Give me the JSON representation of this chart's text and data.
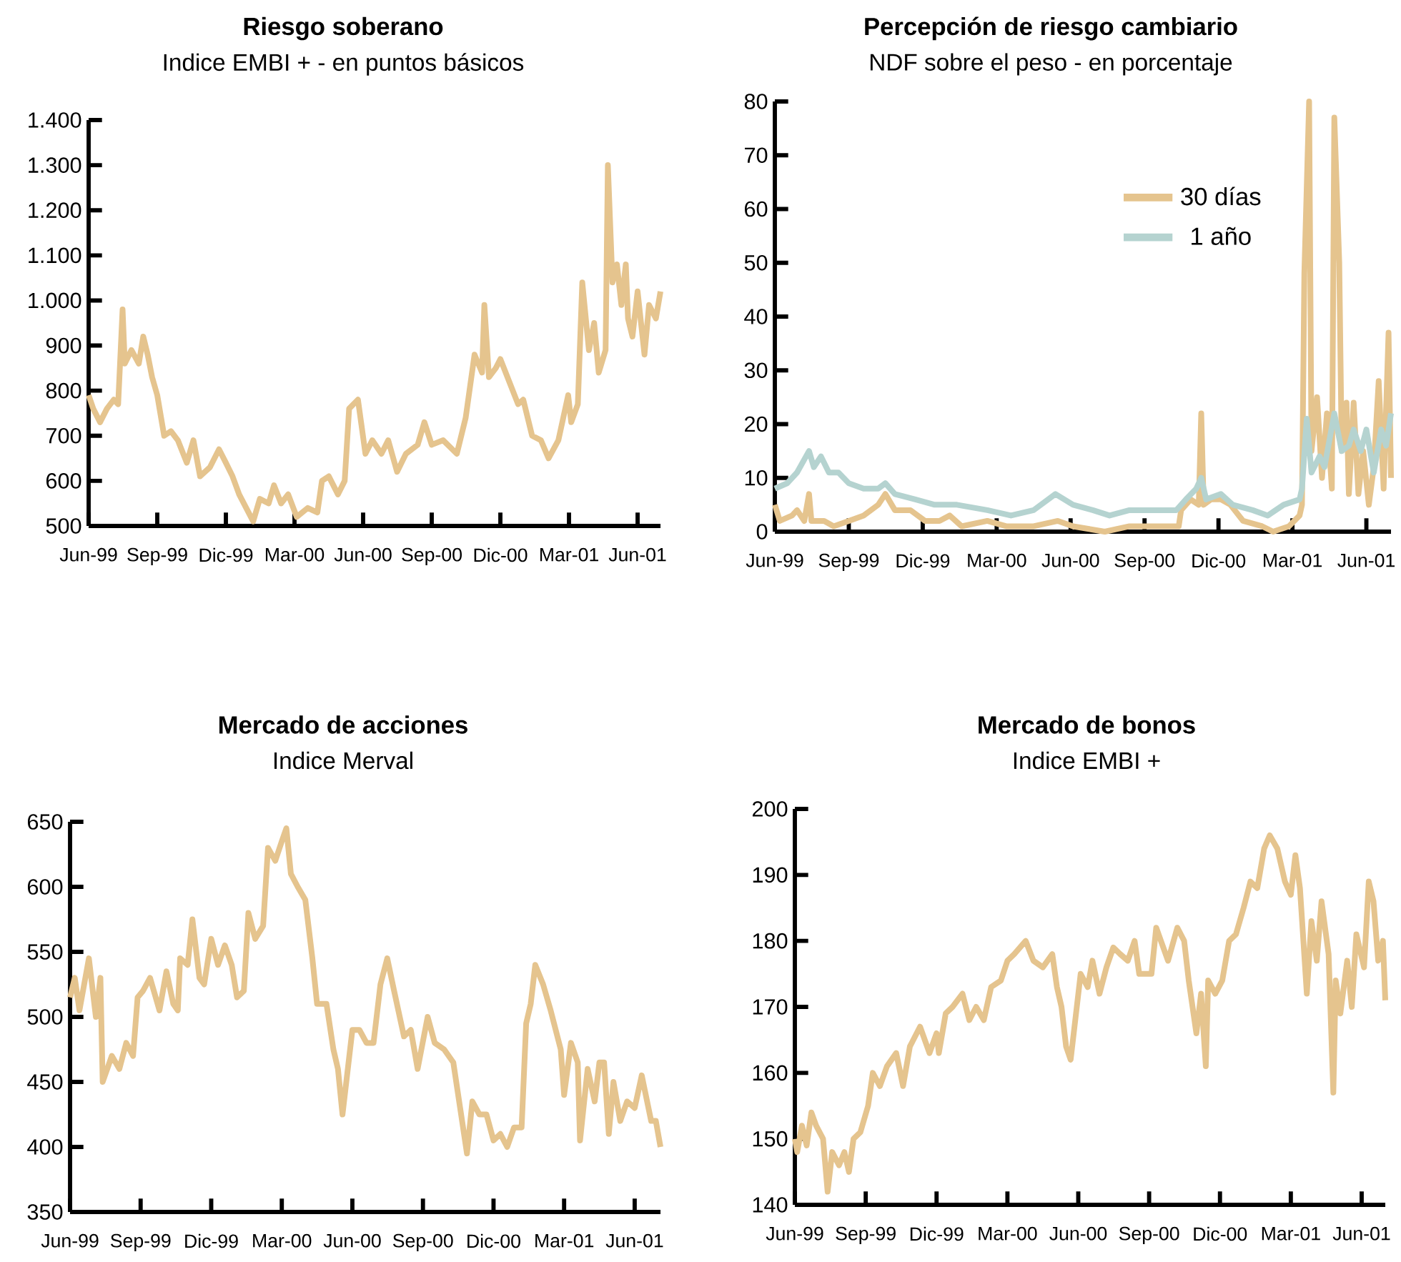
{
  "chart_data": [
    {
      "type": "line",
      "title": "Riesgo soberano",
      "subtitle": "Indice EMBI + - en puntos básicos",
      "xlim": [
        "1999-06-01",
        "2001-07-01"
      ],
      "xticks": [
        {
          "value": "1999-06-01",
          "label": "Jun-99"
        },
        {
          "value": "1999-09-01",
          "label": "Sep-99"
        },
        {
          "value": "1999-12-01",
          "label": "Dic-99"
        },
        {
          "value": "2000-03-01",
          "label": "Mar-00"
        },
        {
          "value": "2000-06-01",
          "label": "Jun-00"
        },
        {
          "value": "2000-09-01",
          "label": "Sep-00"
        },
        {
          "value": "2000-12-01",
          "label": "Dic-00"
        },
        {
          "value": "2001-03-01",
          "label": "Mar-01"
        },
        {
          "value": "2001-06-01",
          "label": "Jun-01"
        }
      ],
      "ylim": [
        500,
        1400
      ],
      "yticks": [
        500,
        600,
        700,
        800,
        900,
        {
          "value": 1000,
          "label": "1.000"
        },
        {
          "value": 1100,
          "label": "1.100"
        },
        {
          "value": 1200,
          "label": "1.200"
        },
        {
          "value": 1300,
          "label": "1.300"
        },
        {
          "value": 1400,
          "label": "1.400"
        }
      ],
      "series": [
        {
          "color": "#e5c48e",
          "x": [
            "1999-06-01",
            "1999-06-07",
            "1999-06-16",
            "1999-06-25",
            "1999-07-04",
            "1999-07-10",
            "1999-07-16",
            "1999-07-19",
            "1999-07-28",
            "1999-08-07",
            "1999-08-13",
            "1999-08-19",
            "1999-08-25",
            "1999-09-01",
            "1999-09-10",
            "1999-09-19",
            "1999-09-28",
            "1999-10-10",
            "1999-10-19",
            "1999-10-28",
            "1999-11-10",
            "1999-11-22",
            "1999-12-01",
            "1999-12-10",
            "1999-12-19",
            "2000-01-07",
            "2000-01-16",
            "2000-01-28",
            "2000-02-04",
            "2000-02-13",
            "2000-02-22",
            "2000-03-04",
            "2000-03-19",
            "2000-04-01",
            "2000-04-07",
            "2000-04-16",
            "2000-04-28",
            "2000-05-07",
            "2000-05-13",
            "2000-05-25",
            "2000-06-04",
            "2000-06-13",
            "2000-06-25",
            "2000-07-04",
            "2000-07-16",
            "2000-07-28",
            "2000-08-13",
            "2000-08-22",
            "2000-09-01",
            "2000-09-16",
            "2000-10-04",
            "2000-10-16",
            "2000-10-28",
            "2000-11-07",
            "2000-11-10",
            "2000-11-16",
            "2000-11-25",
            "2000-12-01",
            "2000-12-13",
            "2000-12-25",
            "2001-01-01",
            "2001-01-13",
            "2001-01-25",
            "2001-02-04",
            "2001-02-16",
            "2001-02-28",
            "2001-03-04",
            "2001-03-13",
            "2001-03-19",
            "2001-03-28",
            "2001-04-04",
            "2001-04-10",
            "2001-04-19",
            "2001-04-22",
            "2001-04-28",
            "2001-05-04",
            "2001-05-10",
            "2001-05-16",
            "2001-05-19",
            "2001-05-25",
            "2001-06-01",
            "2001-06-10",
            "2001-06-16",
            "2001-06-25",
            "2001-07-01"
          ],
          "values": [
            790,
            760,
            730,
            760,
            780,
            770,
            980,
            860,
            890,
            860,
            920,
            880,
            830,
            790,
            700,
            710,
            690,
            640,
            690,
            610,
            630,
            670,
            640,
            610,
            570,
            510,
            560,
            550,
            590,
            550,
            570,
            520,
            540,
            530,
            600,
            610,
            570,
            600,
            760,
            780,
            660,
            690,
            660,
            690,
            620,
            660,
            680,
            730,
            680,
            690,
            660,
            740,
            880,
            840,
            990,
            830,
            850,
            870,
            820,
            770,
            780,
            700,
            690,
            650,
            690,
            790,
            730,
            770,
            1040,
            890,
            950,
            840,
            890,
            1300,
            1040,
            1080,
            990,
            1080,
            960,
            920,
            1020,
            880,
            990,
            960,
            1020
          ]
        }
      ]
    },
    {
      "type": "line",
      "title": "Percepción de riesgo cambiario",
      "subtitle": "NDF sobre el peso - en porcentaje",
      "legend": "top right",
      "xlim": [
        "1999-06-01",
        "2001-07-01"
      ],
      "xticks": [
        {
          "value": "1999-06-01",
          "label": "Jun-99"
        },
        {
          "value": "1999-09-01",
          "label": "Sep-99"
        },
        {
          "value": "1999-12-01",
          "label": "Dic-99"
        },
        {
          "value": "2000-03-01",
          "label": "Mar-00"
        },
        {
          "value": "2000-06-01",
          "label": "Jun-00"
        },
        {
          "value": "2000-09-01",
          "label": "Sep-00"
        },
        {
          "value": "2000-12-01",
          "label": "Dic-00"
        },
        {
          "value": "2001-03-01",
          "label": "Mar-01"
        },
        {
          "value": "2001-06-01",
          "label": "Jun-01"
        }
      ],
      "ylim": [
        0,
        80
      ],
      "yticks": [
        0,
        10,
        20,
        30,
        40,
        50,
        60,
        70,
        80
      ],
      "series": [
        {
          "name": "30 días",
          "color": "#e5c48e",
          "x": [
            "1999-06-01",
            "1999-06-07",
            "1999-06-22",
            "1999-06-28",
            "1999-07-07",
            "1999-07-13",
            "1999-07-16",
            "1999-08-01",
            "1999-08-13",
            "1999-09-01",
            "1999-09-19",
            "1999-10-07",
            "1999-10-16",
            "1999-10-28",
            "1999-11-16",
            "1999-12-04",
            "1999-12-22",
            "2000-01-04",
            "2000-01-19",
            "2000-02-19",
            "2000-03-13",
            "2000-04-16",
            "2000-05-16",
            "2000-06-04",
            "2000-07-13",
            "2000-08-13",
            "2000-09-13",
            "2000-10-13",
            "2000-10-16",
            "2000-10-28",
            "2000-11-07",
            "2000-11-10",
            "2000-11-13",
            "2000-11-22",
            "2000-12-04",
            "2000-12-16",
            "2001-01-01",
            "2001-01-25",
            "2001-02-07",
            "2001-02-25",
            "2001-03-10",
            "2001-03-13",
            "2001-03-16",
            "2001-03-22",
            "2001-03-25",
            "2001-04-01",
            "2001-04-07",
            "2001-04-13",
            "2001-04-19",
            "2001-04-22",
            "2001-04-28",
            "2001-05-01",
            "2001-05-07",
            "2001-05-10",
            "2001-05-16",
            "2001-05-22",
            "2001-05-28",
            "2001-06-04",
            "2001-06-10",
            "2001-06-16",
            "2001-06-22",
            "2001-06-28",
            "2001-07-01"
          ],
          "values": [
            5,
            2,
            3,
            4,
            2,
            7,
            2,
            2,
            1,
            2,
            3,
            5,
            7,
            4,
            4,
            2,
            2,
            3,
            1,
            2,
            1,
            1,
            2,
            1,
            0,
            1,
            1,
            1,
            4,
            6,
            5,
            22,
            5,
            6,
            6,
            5,
            2,
            1,
            0,
            1,
            3,
            5,
            48,
            80,
            15,
            25,
            10,
            22,
            8,
            77,
            50,
            15,
            24,
            7,
            24,
            7,
            15,
            5,
            12,
            28,
            8,
            37,
            10
          ]
        },
        {
          "name": "1 año",
          "color": "#b5d3d0",
          "x": [
            "1999-06-01",
            "1999-06-16",
            "1999-06-28",
            "1999-07-13",
            "1999-07-19",
            "1999-07-28",
            "1999-08-07",
            "1999-08-19",
            "1999-09-01",
            "1999-09-19",
            "1999-10-07",
            "1999-10-16",
            "1999-10-28",
            "1999-11-22",
            "1999-12-16",
            "2000-01-13",
            "2000-02-19",
            "2000-03-19",
            "2000-04-16",
            "2000-05-13",
            "2000-06-04",
            "2000-06-28",
            "2000-07-19",
            "2000-08-13",
            "2000-09-13",
            "2000-10-10",
            "2000-10-22",
            "2000-11-04",
            "2000-11-10",
            "2000-11-16",
            "2000-12-04",
            "2000-12-19",
            "2001-01-13",
            "2001-02-01",
            "2001-02-19",
            "2001-03-10",
            "2001-03-13",
            "2001-03-19",
            "2001-03-25",
            "2001-04-04",
            "2001-04-10",
            "2001-04-22",
            "2001-05-01",
            "2001-05-10",
            "2001-05-16",
            "2001-05-25",
            "2001-06-01",
            "2001-06-10",
            "2001-06-19",
            "2001-06-25",
            "2001-07-01"
          ],
          "values": [
            8,
            9,
            11,
            15,
            12,
            14,
            11,
            11,
            9,
            8,
            8,
            9,
            7,
            6,
            5,
            5,
            4,
            3,
            4,
            7,
            5,
            4,
            3,
            4,
            4,
            4,
            6,
            8,
            10,
            6,
            7,
            5,
            4,
            3,
            5,
            6,
            8,
            21,
            11,
            14,
            12,
            22,
            15,
            16,
            19,
            15,
            19,
            11,
            19,
            16,
            22
          ]
        }
      ]
    },
    {
      "type": "line",
      "title": "Mercado de acciones",
      "subtitle": "Indice Merval",
      "xlim": [
        "1999-06-01",
        "2001-07-04"
      ],
      "xticks": [
        {
          "value": "1999-06-01",
          "label": "Jun-99"
        },
        {
          "value": "1999-09-01",
          "label": "Sep-99"
        },
        {
          "value": "1999-12-01",
          "label": "Dic-99"
        },
        {
          "value": "2000-03-01",
          "label": "Mar-00"
        },
        {
          "value": "2000-06-01",
          "label": "Jun-00"
        },
        {
          "value": "2000-09-01",
          "label": "Sep-00"
        },
        {
          "value": "2000-12-01",
          "label": "Dic-00"
        },
        {
          "value": "2001-03-01",
          "label": "Mar-01"
        },
        {
          "value": "2001-06-01",
          "label": "Jun-01"
        }
      ],
      "ylim": [
        350,
        650
      ],
      "yticks": [
        350,
        400,
        450,
        500,
        550,
        600,
        650
      ],
      "series": [
        {
          "color": "#e5c48e",
          "x": [
            "1999-06-01",
            "1999-06-07",
            "1999-06-13",
            "1999-06-25",
            "1999-07-04",
            "1999-07-10",
            "1999-07-13",
            "1999-07-25",
            "1999-08-04",
            "1999-08-13",
            "1999-08-22",
            "1999-08-28",
            "1999-09-04",
            "1999-09-13",
            "1999-09-25",
            "1999-10-04",
            "1999-10-13",
            "1999-10-19",
            "1999-10-22",
            "1999-11-01",
            "1999-11-07",
            "1999-11-16",
            "1999-11-22",
            "1999-12-01",
            "1999-12-10",
            "1999-12-19",
            "1999-12-28",
            "2000-01-04",
            "2000-01-13",
            "2000-01-19",
            "2000-01-28",
            "2000-02-07",
            "2000-02-13",
            "2000-02-22",
            "2000-03-01",
            "2000-03-07",
            "2000-03-13",
            "2000-03-22",
            "2000-04-01",
            "2000-04-10",
            "2000-04-16",
            "2000-04-28",
            "2000-05-07",
            "2000-05-13",
            "2000-05-19",
            "2000-06-01",
            "2000-06-10",
            "2000-06-19",
            "2000-06-28",
            "2000-07-07",
            "2000-07-16",
            "2000-07-25",
            "2000-08-07",
            "2000-08-16",
            "2000-08-25",
            "2000-09-07",
            "2000-09-16",
            "2000-09-28",
            "2000-10-10",
            "2000-10-19",
            "2000-10-28",
            "2000-11-04",
            "2000-11-13",
            "2000-11-22",
            "2000-12-01",
            "2000-12-10",
            "2000-12-19",
            "2000-12-28",
            "2001-01-07",
            "2001-01-13",
            "2001-01-19",
            "2001-01-25",
            "2001-02-04",
            "2001-02-13",
            "2001-02-25",
            "2001-03-01",
            "2001-03-10",
            "2001-03-19",
            "2001-03-22",
            "2001-04-01",
            "2001-04-10",
            "2001-04-16",
            "2001-04-22",
            "2001-04-28",
            "2001-05-04",
            "2001-05-13",
            "2001-05-22",
            "2001-06-01",
            "2001-06-10",
            "2001-06-22",
            "2001-06-28",
            "2001-07-04"
          ],
          "values": [
            515,
            530,
            505,
            545,
            500,
            530,
            450,
            470,
            460,
            480,
            470,
            515,
            520,
            530,
            505,
            535,
            510,
            505,
            545,
            540,
            575,
            530,
            525,
            560,
            540,
            555,
            540,
            515,
            520,
            580,
            560,
            570,
            630,
            620,
            635,
            645,
            610,
            600,
            590,
            545,
            510,
            510,
            475,
            460,
            425,
            490,
            490,
            480,
            480,
            525,
            545,
            520,
            485,
            490,
            460,
            500,
            480,
            475,
            465,
            430,
            395,
            435,
            425,
            425,
            405,
            410,
            400,
            415,
            415,
            495,
            510,
            540,
            525,
            505,
            475,
            440,
            480,
            465,
            405,
            460,
            435,
            465,
            465,
            410,
            450,
            420,
            435,
            430,
            455,
            420,
            420,
            400
          ]
        }
      ]
    },
    {
      "type": "line",
      "title": "Mercado de bonos",
      "subtitle": "Indice EMBI +",
      "xlim": [
        "1999-06-01",
        "2001-07-01"
      ],
      "xticks": [
        {
          "value": "1999-06-01",
          "label": "Jun-99"
        },
        {
          "value": "1999-09-01",
          "label": "Sep-99"
        },
        {
          "value": "1999-12-01",
          "label": "Dic-99"
        },
        {
          "value": "2000-03-01",
          "label": "Mar-00"
        },
        {
          "value": "2000-06-01",
          "label": "Jun-00"
        },
        {
          "value": "2000-09-01",
          "label": "Sep-00"
        },
        {
          "value": "2000-12-01",
          "label": "Dic-00"
        },
        {
          "value": "2001-03-01",
          "label": "Mar-01"
        },
        {
          "value": "2001-06-01",
          "label": "Jun-01"
        }
      ],
      "ylim": [
        140,
        200
      ],
      "yticks": [
        140,
        150,
        160,
        170,
        180,
        190,
        200
      ],
      "series": [
        {
          "color": "#e5c48e",
          "x": [
            "1999-06-01",
            "1999-06-04",
            "1999-06-10",
            "1999-06-16",
            "1999-06-22",
            "1999-06-28",
            "1999-07-07",
            "1999-07-13",
            "1999-07-19",
            "1999-07-28",
            "1999-08-04",
            "1999-08-10",
            "1999-08-16",
            "1999-08-25",
            "1999-09-04",
            "1999-09-10",
            "1999-09-19",
            "1999-09-28",
            "1999-10-10",
            "1999-10-19",
            "1999-10-28",
            "1999-11-10",
            "1999-11-22",
            "1999-12-01",
            "1999-12-04",
            "1999-12-13",
            "1999-12-22",
            "2000-01-04",
            "2000-01-13",
            "2000-01-22",
            "2000-02-01",
            "2000-02-10",
            "2000-02-22",
            "2000-03-01",
            "2000-03-10",
            "2000-03-25",
            "2000-04-04",
            "2000-04-16",
            "2000-04-28",
            "2000-05-04",
            "2000-05-10",
            "2000-05-16",
            "2000-05-22",
            "2000-06-04",
            "2000-06-13",
            "2000-06-19",
            "2000-06-28",
            "2000-07-07",
            "2000-07-16",
            "2000-07-25",
            "2000-08-04",
            "2000-08-13",
            "2000-08-19",
            "2000-09-04",
            "2000-09-10",
            "2000-09-19",
            "2000-09-25",
            "2000-10-07",
            "2000-10-16",
            "2000-10-22",
            "2000-11-01",
            "2000-11-07",
            "2000-11-13",
            "2000-11-16",
            "2000-11-25",
            "2000-12-04",
            "2000-12-13",
            "2000-12-22",
            "2001-01-01",
            "2001-01-10",
            "2001-01-19",
            "2001-01-28",
            "2001-02-04",
            "2001-02-13",
            "2001-02-22",
            "2001-03-01",
            "2001-03-07",
            "2001-03-13",
            "2001-03-22",
            "2001-03-28",
            "2001-04-04",
            "2001-04-10",
            "2001-04-19",
            "2001-04-25",
            "2001-04-28",
            "2001-05-04",
            "2001-05-13",
            "2001-05-19",
            "2001-05-25",
            "2001-06-04",
            "2001-06-10",
            "2001-06-16",
            "2001-06-22",
            "2001-06-28",
            "2001-07-01"
          ],
          "values": [
            150,
            148,
            152,
            149,
            154,
            152,
            150,
            142,
            148,
            146,
            148,
            145,
            150,
            151,
            155,
            160,
            158,
            161,
            163,
            158,
            164,
            167,
            163,
            166,
            163,
            169,
            170,
            172,
            168,
            170,
            168,
            173,
            174,
            177,
            178,
            180,
            177,
            176,
            178,
            173,
            170,
            164,
            162,
            175,
            173,
            177,
            172,
            176,
            179,
            178,
            177,
            180,
            175,
            175,
            182,
            179,
            177,
            182,
            180,
            174,
            166,
            172,
            161,
            174,
            172,
            174,
            180,
            181,
            185,
            189,
            188,
            194,
            196,
            194,
            189,
            187,
            193,
            188,
            172,
            183,
            177,
            186,
            178,
            157,
            174,
            169,
            177,
            170,
            181,
            176,
            189,
            186,
            177,
            180,
            171
          ]
        }
      ]
    }
  ]
}
